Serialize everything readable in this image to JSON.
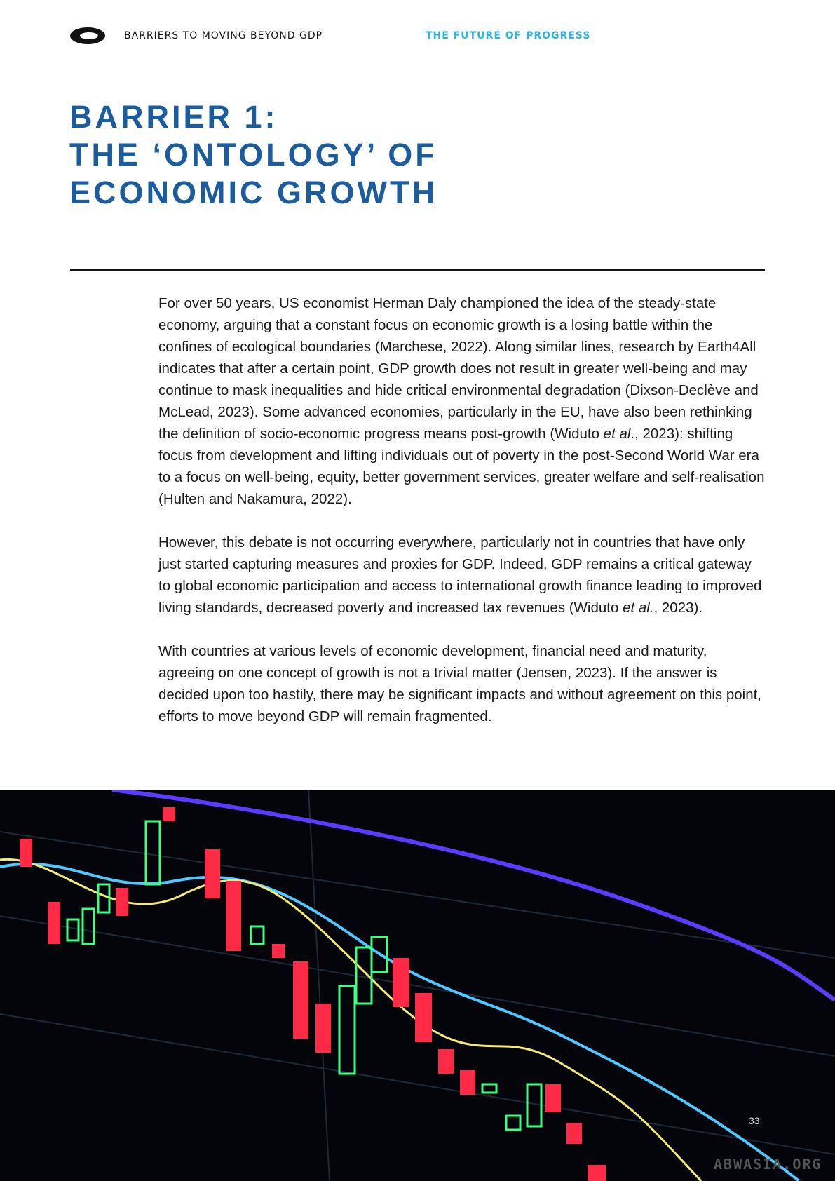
{
  "header": {
    "section": "BARRIERS TO MOVING BEYOND GDP",
    "publication": "THE FUTURE OF PROGRESS"
  },
  "title": [
    "BARRIER 1:",
    "THE ‘ONTOLOGY’ OF",
    "ECONOMIC GROWTH"
  ],
  "paragraphs": [
    [
      "For over 50 years, US economist Herman Daly championed the idea of the steady-state economy, arguing that a constant focus on economic growth is a losing battle within the confines of ecological boundaries (Marchese, 2022). Along similar lines, research by Earth4All indicates that after a certain point, GDP growth does not result in greater well-being and may continue to mask inequalities and hide critical environmental degradation (Dixson-Declève and McLead, 2023). Some advanced economies, particularly in the EU, have also been rethinking the definition of socio-economic progress means post-growth (Widuto ",
      "et al",
      "., 2023): shifting focus from development and lifting individuals out of poverty in the post-Second World War era to a focus on well-being, equity, better government services, greater welfare and self-realisation (Hulten and Nakamura, 2022)."
    ],
    [
      "However, this debate is not occurring everywhere, particularly not in countries that have only just started capturing measures and proxies for GDP. Indeed, GDP remains a critical gateway to global economic participation and access to international growth finance leading to improved living standards, decreased poverty and increased tax revenues (Widuto ",
      "et al.",
      ", 2023)."
    ],
    [
      "With countries at various levels of economic development, financial need and maturity, agreeing on one concept of growth is not a trivial matter (Jensen, 2023). If the answer is decided upon too hastily, there may be significant impacts and without agreement on this point, efforts to move beyond GDP will remain fragmented."
    ]
  ],
  "page_number": "33",
  "watermark": "ABWASIA.ORG"
}
